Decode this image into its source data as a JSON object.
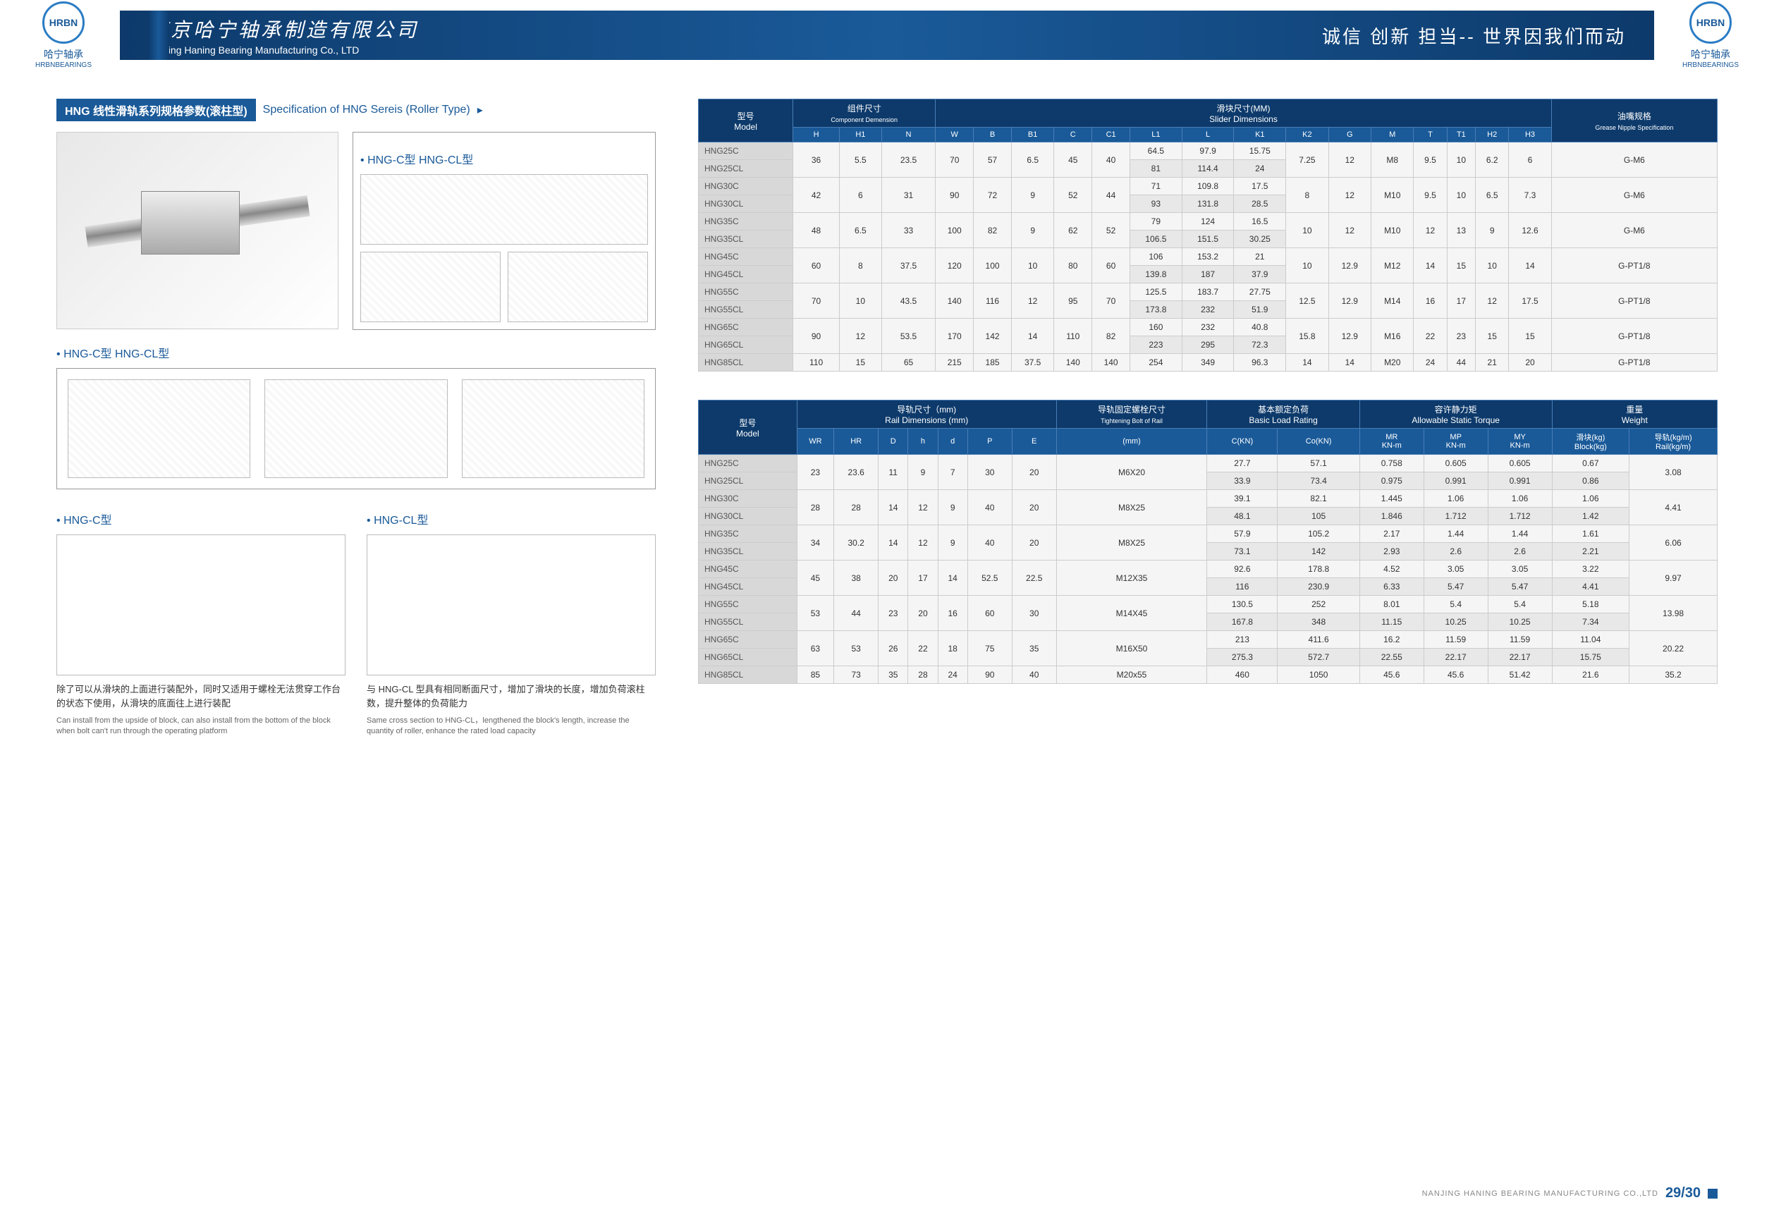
{
  "header": {
    "logo_brand_cn": "哈宁轴承",
    "logo_brand_en": "HRBNBEARINGS",
    "company_cn": "南京哈宁轴承制造有限公司",
    "company_en": "Nanjing Haning Bearing Manufacturing Co., LTD",
    "slogan": "诚信 创新 担当-- 世界因我们而动"
  },
  "section": {
    "title_box": "HNG 线性滑轨系列规格参数(滚柱型)",
    "title_text": "Specification of HNG Sereis (Roller Type)",
    "arrow": "▸"
  },
  "headings": {
    "hng_c_cl": "HNG-C型 HNG-CL型",
    "hng_c": "HNG-C型",
    "hng_cl": "HNG-CL型"
  },
  "desc": {
    "c_cn": "除了可以从滑块的上面进行装配外，同时又适用于螺栓无法贯穿工作台的状态下使用，从滑块的底面往上进行装配",
    "c_en": "Can install from the upside of block, can also install from the bottom of the block when bolt can't run through the operating platform",
    "cl_cn": "与 HNG-CL 型具有相同断面尺寸，增加了滑块的长度，增加负荷滚柱数，提升整体的负荷能力",
    "cl_en": "Same cross section to HNG-CL，lengthened the block's length, increase the quantity of roller, enhance the rated load capacity"
  },
  "table1": {
    "header_groups": {
      "model_cn": "型号",
      "model_en": "Model",
      "comp_cn": "组件尺寸",
      "comp_en": "Component Demension",
      "slider_cn": "滑块尺寸(MM)",
      "slider_en": "Slider Dimensions",
      "grease_cn": "油嘴规格",
      "grease_en": "Grease Nipple Specification"
    },
    "cols": [
      "H",
      "H1",
      "N",
      "W",
      "B",
      "B1",
      "C",
      "C1",
      "L1",
      "L",
      "K1",
      "K2",
      "G",
      "M",
      "T",
      "T1",
      "H2",
      "H3"
    ],
    "rows": [
      {
        "m": "HNG25C",
        "d": [
          "36",
          "5.5",
          "23.5",
          "70",
          "57",
          "6.5",
          "45",
          "40",
          "64.5",
          "97.9",
          "15.75",
          "7.25",
          "12",
          "M8",
          "9.5",
          "10",
          "6.2",
          "6",
          "G-M6"
        ],
        "span": 2,
        "spanCols": [
          0,
          1,
          2,
          3,
          4,
          5,
          6,
          7,
          11,
          12,
          13,
          14,
          15,
          16,
          17,
          18
        ]
      },
      {
        "m": "HNG25CL",
        "d": [
          "",
          "",
          "",
          "",
          "",
          "",
          "",
          "",
          "81",
          "114.4",
          "24",
          "",
          "",
          "",
          "",
          "",
          "",
          "",
          ""
        ]
      },
      {
        "m": "HNG30C",
        "d": [
          "42",
          "6",
          "31",
          "90",
          "72",
          "9",
          "52",
          "44",
          "71",
          "109.8",
          "17.5",
          "8",
          "12",
          "M10",
          "9.5",
          "10",
          "6.5",
          "7.3",
          "G-M6"
        ],
        "span": 2,
        "spanCols": [
          0,
          1,
          2,
          3,
          4,
          5,
          6,
          7,
          11,
          12,
          13,
          14,
          15,
          16,
          17,
          18
        ]
      },
      {
        "m": "HNG30CL",
        "d": [
          "",
          "",
          "",
          "",
          "",
          "",
          "",
          "",
          "93",
          "131.8",
          "28.5",
          "",
          "",
          "",
          "",
          "",
          "",
          "",
          ""
        ]
      },
      {
        "m": "HNG35C",
        "d": [
          "48",
          "6.5",
          "33",
          "100",
          "82",
          "9",
          "62",
          "52",
          "79",
          "124",
          "16.5",
          "10",
          "12",
          "M10",
          "12",
          "13",
          "9",
          "12.6",
          "G-M6"
        ],
        "span": 2,
        "spanCols": [
          0,
          1,
          2,
          3,
          4,
          5,
          6,
          7,
          11,
          12,
          13,
          14,
          15,
          16,
          17,
          18
        ]
      },
      {
        "m": "HNG35CL",
        "d": [
          "",
          "",
          "",
          "",
          "",
          "",
          "",
          "",
          "106.5",
          "151.5",
          "30.25",
          "",
          "",
          "",
          "",
          "",
          "",
          "",
          ""
        ]
      },
      {
        "m": "HNG45C",
        "d": [
          "60",
          "8",
          "37.5",
          "120",
          "100",
          "10",
          "80",
          "60",
          "106",
          "153.2",
          "21",
          "10",
          "12.9",
          "M12",
          "14",
          "15",
          "10",
          "14",
          "G-PT1/8"
        ],
        "span": 2,
        "spanCols": [
          0,
          1,
          2,
          3,
          4,
          5,
          6,
          7,
          11,
          12,
          13,
          14,
          15,
          16,
          17,
          18
        ]
      },
      {
        "m": "HNG45CL",
        "d": [
          "",
          "",
          "",
          "",
          "",
          "",
          "",
          "",
          "139.8",
          "187",
          "37.9",
          "",
          "",
          "",
          "",
          "",
          "",
          "",
          ""
        ]
      },
      {
        "m": "HNG55C",
        "d": [
          "70",
          "10",
          "43.5",
          "140",
          "116",
          "12",
          "95",
          "70",
          "125.5",
          "183.7",
          "27.75",
          "12.5",
          "12.9",
          "M14",
          "16",
          "17",
          "12",
          "17.5",
          "G-PT1/8"
        ],
        "span": 2,
        "spanCols": [
          0,
          1,
          2,
          3,
          4,
          5,
          6,
          7,
          11,
          12,
          13,
          14,
          15,
          16,
          17,
          18
        ]
      },
      {
        "m": "HNG55CL",
        "d": [
          "",
          "",
          "",
          "",
          "",
          "",
          "",
          "",
          "173.8",
          "232",
          "51.9",
          "",
          "",
          "",
          "",
          "",
          "",
          "",
          ""
        ]
      },
      {
        "m": "HNG65C",
        "d": [
          "90",
          "12",
          "53.5",
          "170",
          "142",
          "14",
          "110",
          "82",
          "160",
          "232",
          "40.8",
          "15.8",
          "12.9",
          "M16",
          "22",
          "23",
          "15",
          "15",
          "G-PT1/8"
        ],
        "span": 2,
        "spanCols": [
          0,
          1,
          2,
          3,
          4,
          5,
          6,
          7,
          11,
          12,
          13,
          14,
          15,
          16,
          17,
          18
        ]
      },
      {
        "m": "HNG65CL",
        "d": [
          "",
          "",
          "",
          "",
          "",
          "",
          "",
          "",
          "223",
          "295",
          "72.3",
          "",
          "",
          "",
          "",
          "",
          "",
          "",
          ""
        ]
      },
      {
        "m": "HNG85CL",
        "d": [
          "110",
          "15",
          "65",
          "215",
          "185",
          "37.5",
          "140",
          "140",
          "254",
          "349",
          "96.3",
          "14",
          "14",
          "M20",
          "24",
          "44",
          "21",
          "20",
          "G-PT1/8"
        ]
      }
    ]
  },
  "table2": {
    "header_groups": {
      "model_cn": "型号",
      "model_en": "Model",
      "rail_cn": "导轨尺寸（mm)",
      "rail_en": "Rail Dimensions (mm)",
      "bolt_cn": "导轨固定螺栓尺寸",
      "bolt_en": "Tightening Bolt of Rail",
      "load_cn": "基本额定负荷",
      "load_en": "Basic Load Rating",
      "torque_cn": "容许静力矩",
      "torque_en": "Allowable Static Torque",
      "weight_cn": "重量",
      "weight_en": "Weight"
    },
    "cols": [
      "WR",
      "HR",
      "D",
      "h",
      "d",
      "P",
      "E",
      "(mm)",
      "C(KN)",
      "Co(KN)",
      "MR KN-m",
      "MP KN-m",
      "MY KN-m",
      "滑块(kg) Block(kg)",
      "导轨(kg/m) Rail(kg/m)"
    ],
    "rows": [
      {
        "m": "HNG25C",
        "d": [
          "23",
          "23.6",
          "11",
          "9",
          "7",
          "30",
          "20",
          "M6X20",
          "27.7",
          "57.1",
          "0.758",
          "0.605",
          "0.605",
          "0.67",
          "3.08"
        ],
        "span": 2,
        "spanCols": [
          0,
          1,
          2,
          3,
          4,
          5,
          6,
          7,
          14
        ]
      },
      {
        "m": "HNG25CL",
        "d": [
          "",
          "",
          "",
          "",
          "",
          "",
          "",
          "",
          "33.9",
          "73.4",
          "0.975",
          "0.991",
          "0.991",
          "0.86",
          ""
        ]
      },
      {
        "m": "HNG30C",
        "d": [
          "28",
          "28",
          "14",
          "12",
          "9",
          "40",
          "20",
          "M8X25",
          "39.1",
          "82.1",
          "1.445",
          "1.06",
          "1.06",
          "1.06",
          "4.41"
        ],
        "span": 2,
        "spanCols": [
          0,
          1,
          2,
          3,
          4,
          5,
          6,
          7,
          14
        ]
      },
      {
        "m": "HNG30CL",
        "d": [
          "",
          "",
          "",
          "",
          "",
          "",
          "",
          "",
          "48.1",
          "105",
          "1.846",
          "1.712",
          "1.712",
          "1.42",
          ""
        ]
      },
      {
        "m": "HNG35C",
        "d": [
          "34",
          "30.2",
          "14",
          "12",
          "9",
          "40",
          "20",
          "M8X25",
          "57.9",
          "105.2",
          "2.17",
          "1.44",
          "1.44",
          "1.61",
          "6.06"
        ],
        "span": 2,
        "spanCols": [
          0,
          1,
          2,
          3,
          4,
          5,
          6,
          7,
          14
        ]
      },
      {
        "m": "HNG35CL",
        "d": [
          "",
          "",
          "",
          "",
          "",
          "",
          "",
          "",
          "73.1",
          "142",
          "2.93",
          "2.6",
          "2.6",
          "2.21",
          ""
        ]
      },
      {
        "m": "HNG45C",
        "d": [
          "45",
          "38",
          "20",
          "17",
          "14",
          "52.5",
          "22.5",
          "M12X35",
          "92.6",
          "178.8",
          "4.52",
          "3.05",
          "3.05",
          "3.22",
          "9.97"
        ],
        "span": 2,
        "spanCols": [
          0,
          1,
          2,
          3,
          4,
          5,
          6,
          7,
          14
        ]
      },
      {
        "m": "HNG45CL",
        "d": [
          "",
          "",
          "",
          "",
          "",
          "",
          "",
          "",
          "116",
          "230.9",
          "6.33",
          "5.47",
          "5.47",
          "4.41",
          ""
        ]
      },
      {
        "m": "HNG55C",
        "d": [
          "53",
          "44",
          "23",
          "20",
          "16",
          "60",
          "30",
          "M14X45",
          "130.5",
          "252",
          "8.01",
          "5.4",
          "5.4",
          "5.18",
          "13.98"
        ],
        "span": 2,
        "spanCols": [
          0,
          1,
          2,
          3,
          4,
          5,
          6,
          7,
          14
        ]
      },
      {
        "m": "HNG55CL",
        "d": [
          "",
          "",
          "",
          "",
          "",
          "",
          "",
          "",
          "167.8",
          "348",
          "11.15",
          "10.25",
          "10.25",
          "7.34",
          ""
        ]
      },
      {
        "m": "HNG65C",
        "d": [
          "63",
          "53",
          "26",
          "22",
          "18",
          "75",
          "35",
          "M16X50",
          "213",
          "411.6",
          "16.2",
          "11.59",
          "11.59",
          "11.04",
          "20.22"
        ],
        "span": 2,
        "spanCols": [
          0,
          1,
          2,
          3,
          4,
          5,
          6,
          7,
          14
        ]
      },
      {
        "m": "HNG65CL",
        "d": [
          "",
          "",
          "",
          "",
          "",
          "",
          "",
          "",
          "275.3",
          "572.7",
          "22.55",
          "22.17",
          "22.17",
          "15.75",
          ""
        ]
      },
      {
        "m": "HNG85CL",
        "d": [
          "85",
          "73",
          "35",
          "28",
          "24",
          "90",
          "40",
          "M20x55",
          "460",
          "1050",
          "45.6",
          "45.6",
          "51.42",
          "21.6",
          "35.2"
        ]
      }
    ]
  },
  "footer": {
    "company": "NANJING HANING BEARING MANUFACTURING CO.,LTD",
    "page": "29/30"
  }
}
